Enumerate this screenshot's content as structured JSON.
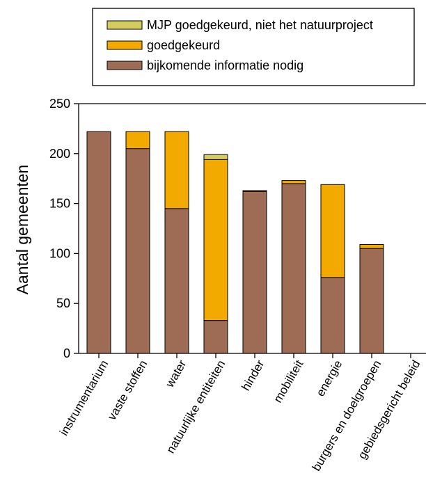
{
  "chart_data": {
    "type": "bar",
    "stacked": true,
    "title": "",
    "xlabel": "",
    "ylabel": "Aantal gemeenten",
    "ylim": [
      0,
      250
    ],
    "yticks": [
      0,
      50,
      100,
      150,
      200,
      250
    ],
    "legend_position": "top",
    "categories": [
      "instrumentarium",
      "vaste stoffen",
      "water",
      "natuurlijke entiteiten",
      "hinder",
      "mobiliteit",
      "energie",
      "burgers en doelgroepen",
      "gebiedsgericht beleid"
    ],
    "series": [
      {
        "name": "bijkomende informatie nodig",
        "color": "#9e6b55",
        "values": [
          222,
          205,
          145,
          33,
          162,
          170,
          76,
          105,
          0
        ]
      },
      {
        "name": "goedgekeurd",
        "color": "#f2a900",
        "values": [
          0,
          17,
          77,
          161,
          1,
          3,
          93,
          4,
          0
        ]
      },
      {
        "name": "MJP goedgekeurd, niet het natuurproject",
        "color": "#d4cc5c",
        "values": [
          0,
          0,
          0,
          5,
          0,
          0,
          0,
          0,
          0
        ]
      }
    ],
    "legend_order": [
      2,
      1,
      0
    ]
  }
}
